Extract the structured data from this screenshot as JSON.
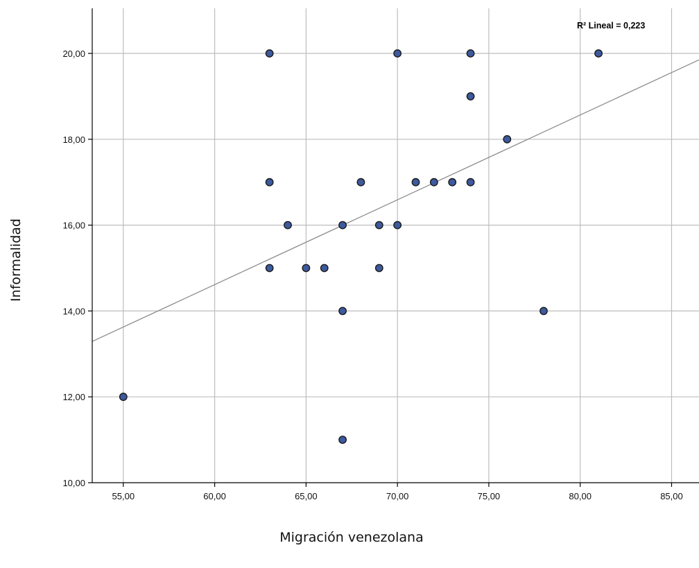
{
  "chart_data": {
    "type": "scatter",
    "xlabel": "Migración venezolana",
    "ylabel": "Informalidad",
    "xlim": [
      53.3,
      86.5
    ],
    "ylim": [
      10,
      21.05
    ],
    "x_ticks": [
      55,
      60,
      65,
      70,
      75,
      80,
      85
    ],
    "x_tick_labels": [
      "55,00",
      "60,00",
      "65,00",
      "70,00",
      "75,00",
      "80,00",
      "85,00"
    ],
    "y_ticks": [
      10,
      12,
      14,
      16,
      18,
      20
    ],
    "y_tick_labels": [
      "10,00",
      "12,00",
      "14,00",
      "16,00",
      "18,00",
      "20,00"
    ],
    "grid": true,
    "points": [
      {
        "x": 55,
        "y": 12
      },
      {
        "x": 63,
        "y": 20
      },
      {
        "x": 63,
        "y": 17
      },
      {
        "x": 63,
        "y": 15
      },
      {
        "x": 64,
        "y": 16
      },
      {
        "x": 65,
        "y": 15
      },
      {
        "x": 66,
        "y": 15
      },
      {
        "x": 67,
        "y": 16
      },
      {
        "x": 67,
        "y": 14
      },
      {
        "x": 67,
        "y": 11
      },
      {
        "x": 68,
        "y": 17
      },
      {
        "x": 69,
        "y": 16
      },
      {
        "x": 69,
        "y": 15
      },
      {
        "x": 70,
        "y": 20
      },
      {
        "x": 70,
        "y": 16
      },
      {
        "x": 71,
        "y": 17
      },
      {
        "x": 72,
        "y": 17
      },
      {
        "x": 73,
        "y": 17
      },
      {
        "x": 74,
        "y": 20
      },
      {
        "x": 74,
        "y": 19
      },
      {
        "x": 74,
        "y": 17
      },
      {
        "x": 76,
        "y": 18
      },
      {
        "x": 78,
        "y": 14
      },
      {
        "x": 81,
        "y": 20
      }
    ],
    "fit_line": {
      "x": [
        53.3,
        86.5
      ],
      "y": [
        13.29,
        19.85
      ]
    },
    "annotation": "R² Lineal = 0,223",
    "colors": {
      "marker_fill": "#3d5a9e",
      "marker_edge": "#1a1a1a",
      "grid": "#bdbdbd",
      "fit_line": "#8c8c8c"
    }
  }
}
